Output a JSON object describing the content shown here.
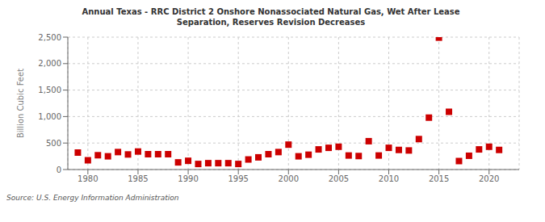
{
  "chart_data": {
    "type": "scatter",
    "title": "Annual Texas - RRC District 2 Onshore Nonassociated Natural Gas, Wet After Lease\nSeparation, Reserves Revision Decreases",
    "y_label": "Billion Cubic Feet",
    "source": "Source: U.S. Energy Information Administration",
    "x": [
      1979,
      1980,
      1981,
      1982,
      1983,
      1984,
      1985,
      1986,
      1987,
      1988,
      1989,
      1990,
      1991,
      1992,
      1993,
      1994,
      1995,
      1996,
      1997,
      1998,
      1999,
      2000,
      2001,
      2002,
      2003,
      2004,
      2005,
      2006,
      2007,
      2008,
      2009,
      2010,
      2011,
      2012,
      2013,
      2014,
      2015,
      2016,
      2017,
      2018,
      2019,
      2020,
      2021
    ],
    "values": [
      320,
      175,
      270,
      250,
      330,
      285,
      340,
      290,
      290,
      290,
      135,
      165,
      105,
      120,
      120,
      120,
      105,
      190,
      230,
      290,
      330,
      470,
      250,
      280,
      380,
      410,
      430,
      265,
      255,
      535,
      265,
      410,
      370,
      360,
      575,
      980,
      2490,
      1090,
      160,
      260,
      380,
      430,
      370
    ],
    "color": "#cc0000",
    "marker": "square",
    "xlim": [
      1978,
      2023
    ],
    "xticks": [
      1980,
      1985,
      1990,
      1995,
      2000,
      2005,
      2010,
      2015,
      2020
    ],
    "ylim": [
      0,
      2500
    ],
    "yticks": [
      0,
      500,
      {
        "value": 1000,
        "label": "1,000"
      },
      {
        "value": 1500,
        "label": "1,500"
      },
      {
        "value": 2000,
        "label": "2,000"
      },
      {
        "value": 2500,
        "label": "2,500"
      }
    ],
    "grid": true
  }
}
